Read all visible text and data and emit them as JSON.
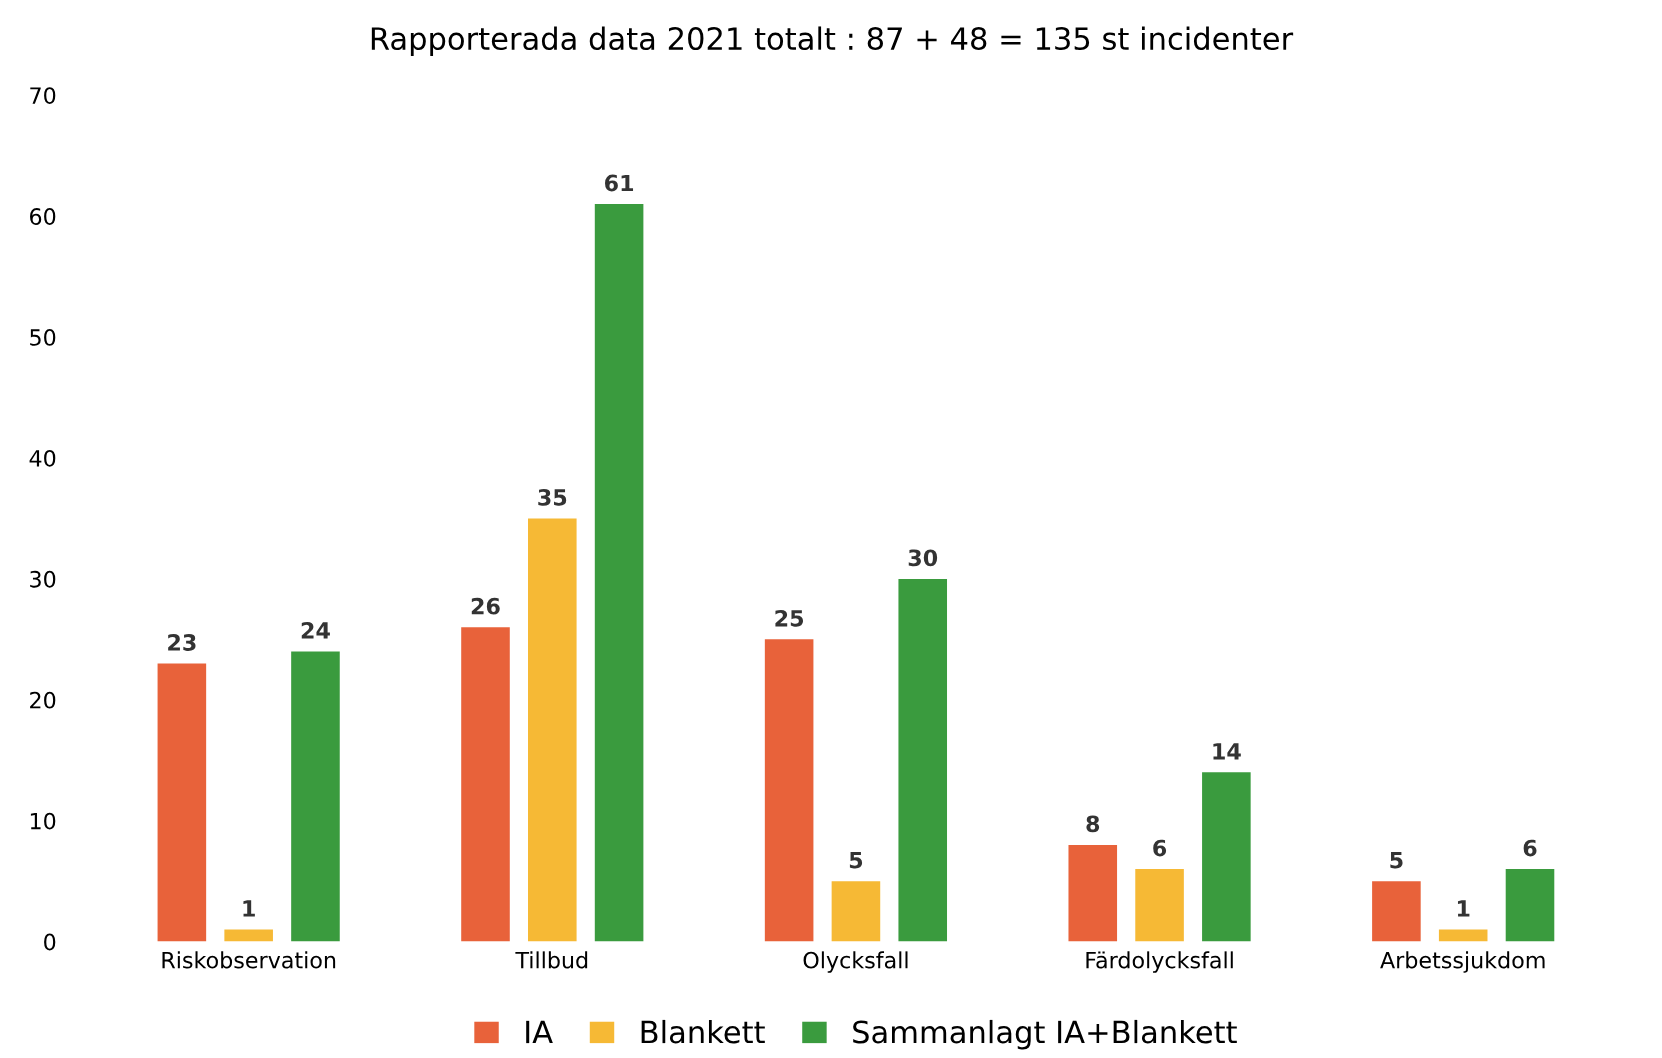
{
  "chart_data": {
    "type": "bar",
    "title": "Rapporterada data 2021 totalt : 87 + 48 = 135 st incidenter",
    "categories": [
      "Riskobservation",
      "Tillbud",
      "Olycksfall",
      "Färdolycksfall",
      "Arbetssjukdom"
    ],
    "series": [
      {
        "name": "IA",
        "color": "#e8623a",
        "values": [
          23,
          26,
          25,
          8,
          5
        ]
      },
      {
        "name": "Blankett",
        "color": "#f6b935",
        "values": [
          1,
          35,
          5,
          6,
          1
        ]
      },
      {
        "name": "Sammanlagt IA+Blankett",
        "color": "#3a9b3e",
        "values": [
          24,
          61,
          30,
          14,
          6
        ]
      }
    ],
    "ylim": [
      0,
      70
    ],
    "yticks": [
      0,
      10,
      20,
      30,
      40,
      50,
      60,
      70
    ],
    "grid": false,
    "legend": "bottom",
    "data_labels": true
  }
}
